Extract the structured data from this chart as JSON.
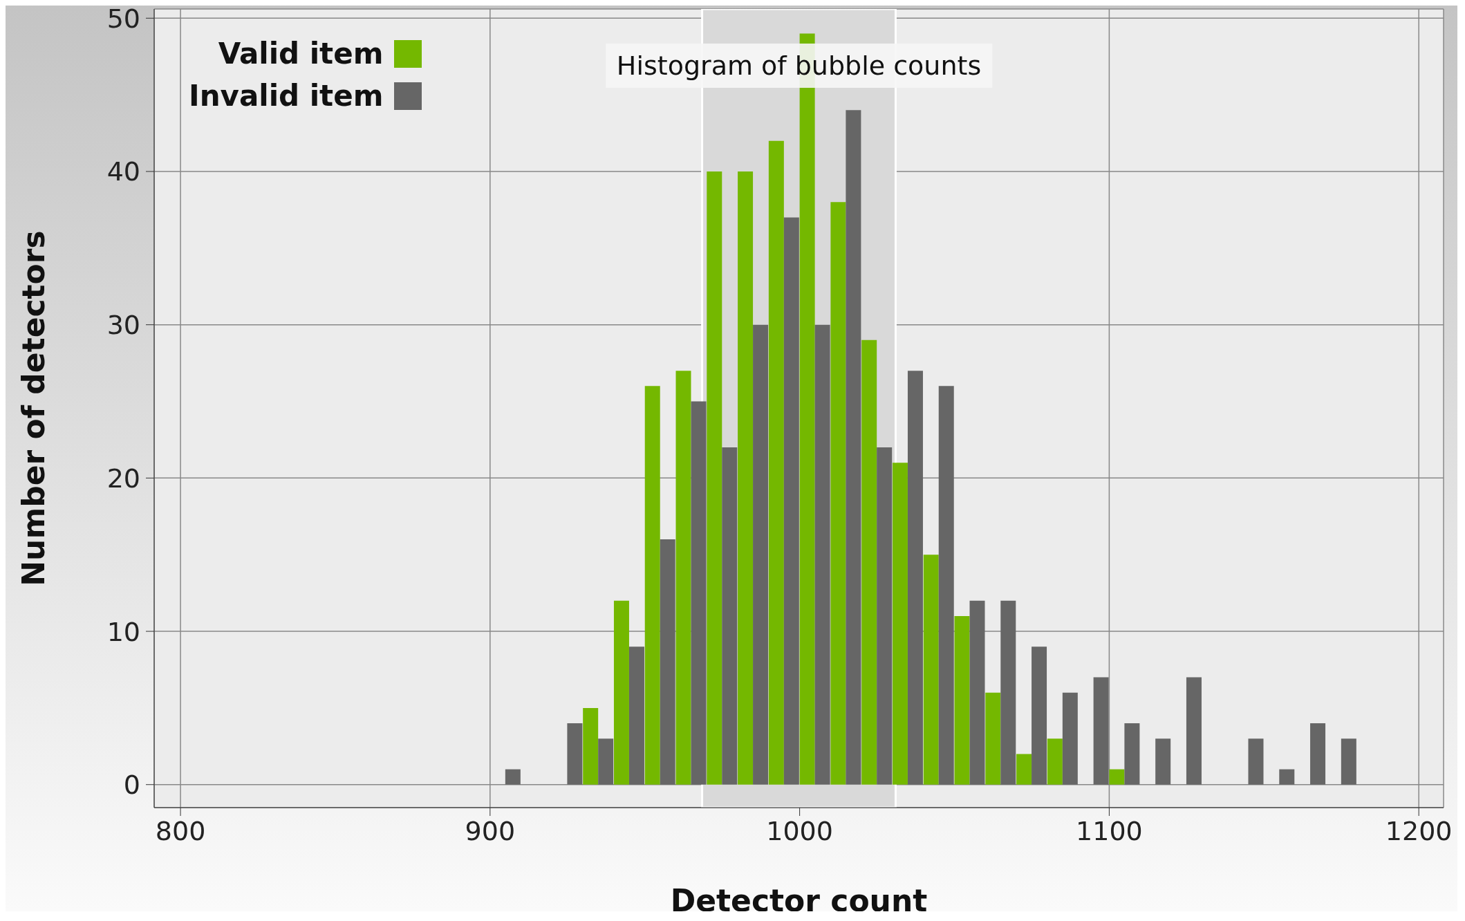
{
  "chart_data": {
    "type": "histogram",
    "title": "Histogram of bubble counts",
    "xlabel": "Detector count",
    "ylabel": "Number of detectors",
    "bins": [
      800,
      810,
      820,
      830,
      840,
      850,
      860,
      870,
      880,
      890,
      900,
      910,
      920,
      930,
      940,
      950,
      960,
      970,
      980,
      990,
      1000,
      1010,
      1020,
      1030,
      1040,
      1050,
      1060,
      1070,
      1080,
      1090,
      1100,
      1110,
      1120,
      1130,
      1140,
      1150,
      1160,
      1170,
      1180,
      1190,
      1200
    ],
    "series": [
      {
        "name": "Valid item",
        "color": "#74b800",
        "values": [
          0,
          0,
          0,
          0,
          0,
          0,
          0,
          0,
          0,
          0,
          0,
          0,
          0,
          5,
          12,
          26,
          27,
          40,
          40,
          42,
          49,
          38,
          29,
          21,
          15,
          11,
          6,
          2,
          3,
          0,
          1,
          0,
          0,
          0,
          0,
          0,
          0,
          0,
          0,
          0
        ]
      },
      {
        "name": "Invalid item",
        "color": "#666666",
        "values": [
          0,
          0,
          0,
          0,
          0,
          0,
          0,
          0,
          0,
          0,
          1,
          0,
          4,
          3,
          9,
          16,
          25,
          22,
          30,
          37,
          30,
          44,
          22,
          27,
          26,
          12,
          12,
          9,
          6,
          7,
          4,
          3,
          7,
          0,
          3,
          1,
          4,
          3,
          0,
          0
        ]
      }
    ],
    "xlim": [
      791.5,
      1208
    ],
    "xticks": [
      800,
      900,
      1000,
      1100,
      1200
    ],
    "ylim": [
      -1.5,
      50.6
    ],
    "yticks": [
      0,
      10,
      20,
      30,
      40,
      50
    ],
    "bands": [
      {
        "axis": "x",
        "from": 968.5,
        "to": 1031,
        "color": "#d9d9d9"
      }
    ],
    "grid": true,
    "legend": "top left"
  }
}
